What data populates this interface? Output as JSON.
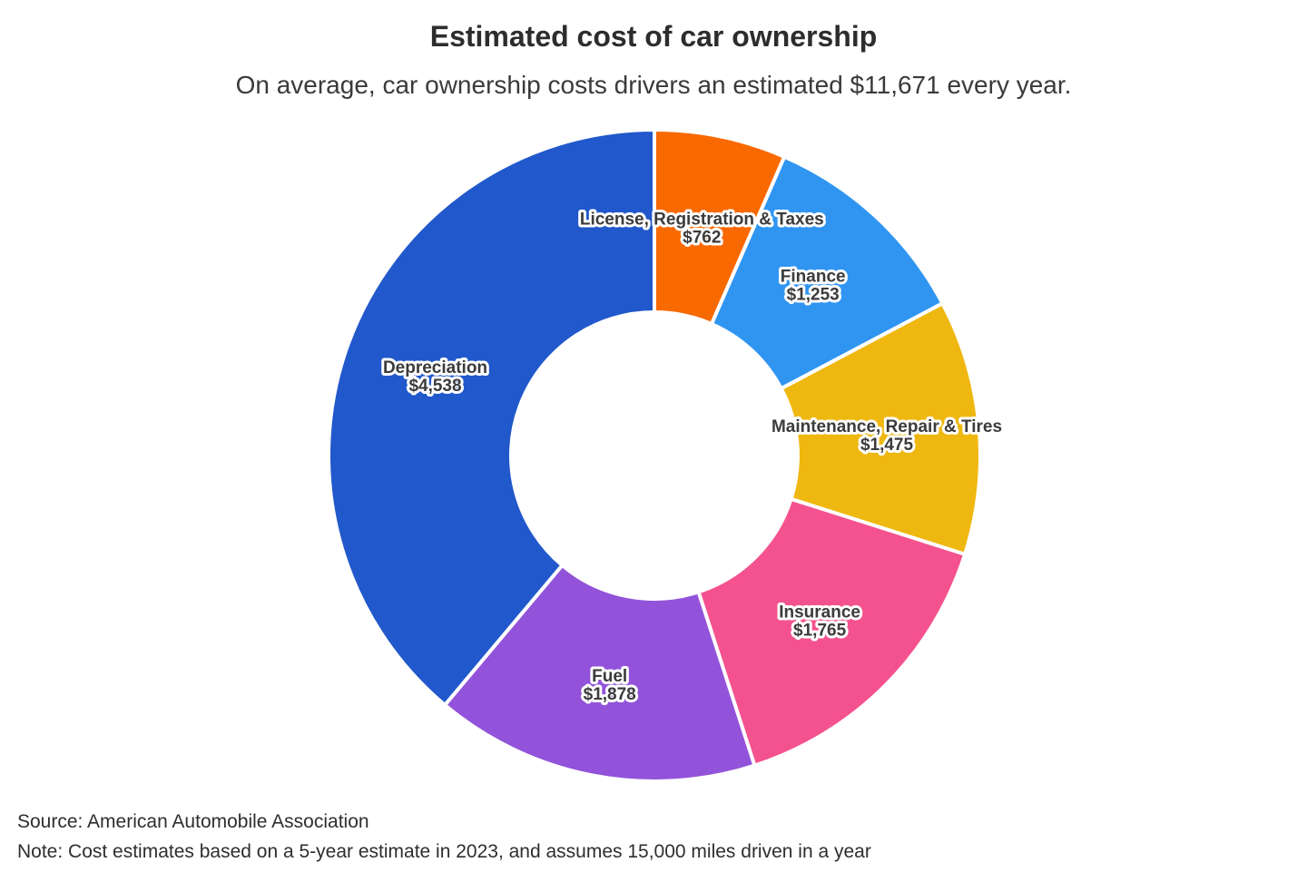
{
  "header": {
    "title": "Estimated cost of car ownership",
    "subtitle": "On average, car ownership costs drivers an estimated $11,671 every year."
  },
  "footer": {
    "source": "Source: American Automobile Association",
    "note": "Note: Cost estimates based on a 5-year estimate in 2023, and assumes 15,000 miles driven in a year"
  },
  "chart_data": {
    "type": "pie",
    "subtype": "donut",
    "title": "Estimated cost of car ownership",
    "total": 11671,
    "total_display": "$11,671",
    "start_angle_deg": 0,
    "direction": "clockwise",
    "legend": "none",
    "labels_on_slices": true,
    "label_text_color": "#3b3b3b",
    "label_outline_color": "#ffffff",
    "slice_border_color": "#ffffff",
    "segments": [
      {
        "label": "License, Registration & Taxes",
        "value": 762,
        "display": "$762",
        "color": "#F86900"
      },
      {
        "label": "Finance",
        "value": 1253,
        "display": "$1,253",
        "color": "#3095F1"
      },
      {
        "label": "Maintenance, Repair & Tires",
        "value": 1475,
        "display": "$1,475",
        "color": "#EFB810"
      },
      {
        "label": "Insurance",
        "value": 1765,
        "display": "$1,765",
        "color": "#F4528E"
      },
      {
        "label": "Fuel",
        "value": 1878,
        "display": "$1,878",
        "color": "#9253DA"
      },
      {
        "label": "Depreciation",
        "value": 4538,
        "display": "$4,538",
        "color": "#2158CB"
      }
    ]
  }
}
